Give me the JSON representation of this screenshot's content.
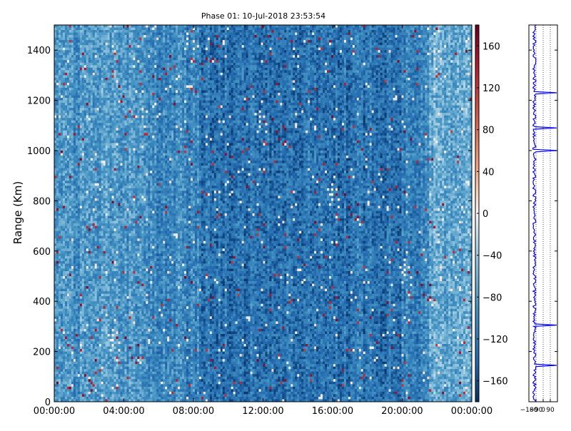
{
  "chart_data": [
    {
      "type": "heatmap",
      "title": "Phase 01: 10-Jul-2018 23:53:54",
      "xlabel": "",
      "ylabel": "Range (Km)",
      "x_tick_labels": [
        "00:00:00",
        "04:00:00",
        "08:00:00",
        "12:00:00",
        "16:00:00",
        "20:00:00",
        "00:00:00"
      ],
      "x_range_hours": [
        0,
        24
      ],
      "y_ticks": [
        0,
        200,
        400,
        600,
        800,
        1000,
        1200,
        1400
      ],
      "ylim": [
        0,
        1500
      ],
      "colorscale": "RdBu_r",
      "colorbar": {
        "ticks": [
          -160,
          -120,
          -80,
          -40,
          0,
          40,
          80,
          120,
          160
        ],
        "range": [
          -180,
          180
        ]
      },
      "grid": false
    },
    {
      "type": "line",
      "title": "",
      "x_tick_labels": [
        "−180",
        "−90",
        "0",
        "90"
      ],
      "x_ticks": [
        -180,
        -90,
        0,
        90
      ],
      "xlim": [
        -180,
        180
      ],
      "ylim": [
        0,
        1500
      ],
      "line_color": "#0000ff",
      "grid": "vertical-dotted",
      "spike_ranges_km": [
        143,
        306,
        1002,
        1089,
        1228
      ]
    }
  ]
}
